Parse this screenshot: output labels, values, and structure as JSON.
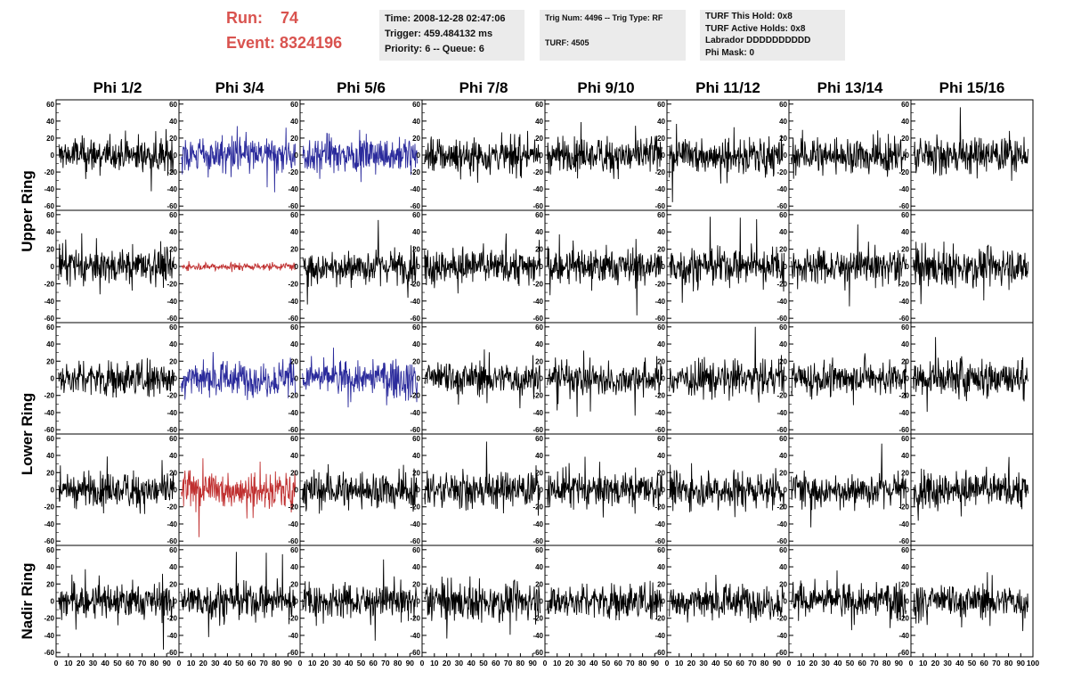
{
  "header": {
    "run_label": "Run:",
    "run_value": "74",
    "event_label": "Event:",
    "event_value": "8324196",
    "time_box": [
      "Time: 2008-12-28 02:47:06",
      "Trigger: 459.484132 ms",
      "Priority: 6 -- Queue: 6"
    ],
    "trig_box": [
      "Trig Num: 4496 -- Trig Type: RF",
      "",
      "TURF: 4505"
    ],
    "turf_box": [
      "TURF This Hold: 0x8",
      "TURF Active Holds: 0x8",
      "Labrador DDDDDDDDDD",
      "Phi Mask: 0"
    ]
  },
  "chart_data": {
    "type": "line",
    "columns": [
      "Phi 1/2",
      "Phi 3/4",
      "Phi 5/6",
      "Phi 7/8",
      "Phi 9/10",
      "Phi 11/12",
      "Phi 13/14",
      "Phi 15/16"
    ],
    "ring_labels": [
      "Upper Ring",
      "Lower Ring",
      "Nadir Ring"
    ],
    "xlim": [
      0,
      100
    ],
    "ylim": [
      -65,
      65
    ],
    "y_ticks": [
      -60,
      -40,
      -20,
      0,
      20,
      40,
      60
    ],
    "y_tick_labels": [
      "-60",
      "-40",
      "-20",
      "0",
      "20",
      "40",
      "60"
    ],
    "x_ticks": [
      0,
      10,
      20,
      30,
      40,
      50,
      60,
      70,
      80,
      90
    ],
    "x_tick_labels": [
      "0",
      "10",
      "20",
      "30",
      "40",
      "50",
      "60",
      "70",
      "80",
      "90"
    ],
    "x_axis_end_label": "100",
    "colors": {
      "default": "#000000",
      "blue": "#2b2b9c",
      "red": "#c03030"
    },
    "highlighted": [
      {
        "row": 0,
        "col": 1,
        "color": "blue"
      },
      {
        "row": 0,
        "col": 2,
        "color": "blue"
      },
      {
        "row": 1,
        "col": 1,
        "color": "red",
        "amplitude": 3
      },
      {
        "row": 2,
        "col": 1,
        "color": "blue"
      },
      {
        "row": 2,
        "col": 2,
        "color": "blue"
      },
      {
        "row": 3,
        "col": 1,
        "color": "red"
      }
    ],
    "approx_amplitude": 15,
    "samples_per_trace": 260
  }
}
